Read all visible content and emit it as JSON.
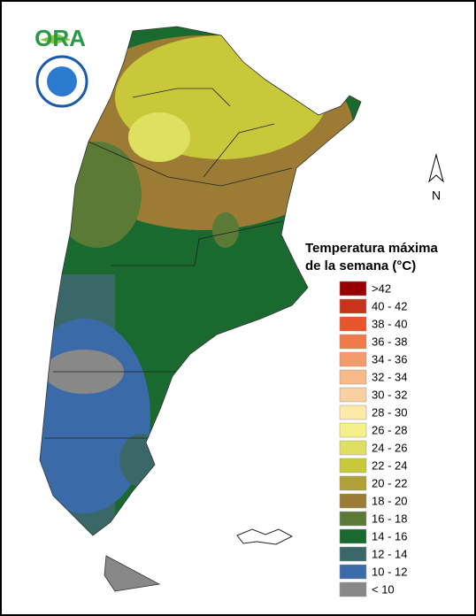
{
  "logo": {
    "text": "ORA"
  },
  "north": "N",
  "legend": {
    "title": [
      "Temperatura máxima",
      "de la semana (°C)"
    ],
    "items": [
      {
        "label": ">42",
        "color": "#9b0000"
      },
      {
        "label": "40 - 42",
        "color": "#c8341a"
      },
      {
        "label": "38 - 40",
        "color": "#e8552a"
      },
      {
        "label": "36 - 38",
        "color": "#f27a4a"
      },
      {
        "label": "34 - 36",
        "color": "#f59a6a"
      },
      {
        "label": "32 - 34",
        "color": "#f8b888"
      },
      {
        "label": "30 - 32",
        "color": "#fbd0a0"
      },
      {
        "label": "28 - 30",
        "color": "#fde9a8"
      },
      {
        "label": "26 - 28",
        "color": "#f5f08a"
      },
      {
        "label": "24 - 26",
        "color": "#e0e060"
      },
      {
        "label": "22 - 24",
        "color": "#c8c83a"
      },
      {
        "label": "20 - 22",
        "color": "#b0a038"
      },
      {
        "label": "18 - 20",
        "color": "#9c7c35"
      },
      {
        "label": "16 - 18",
        "color": "#5a7a35"
      },
      {
        "label": "14 - 16",
        "color": "#1a6a30"
      },
      {
        "label": "12 - 14",
        "color": "#3a6868"
      },
      {
        "label": "10 - 12",
        "color": "#3a6aa8"
      },
      {
        "label": "< 10",
        "color": "#888888"
      }
    ]
  }
}
